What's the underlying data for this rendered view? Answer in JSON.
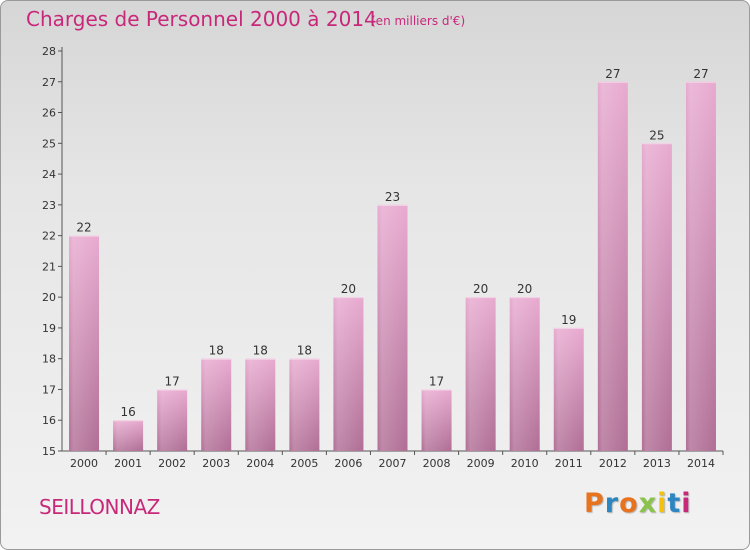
{
  "title": "Charges de Personnel 2000 à 2014",
  "subtitle": "(en milliers d'€)",
  "commune": "SEILLONNAZ",
  "logo_text": "Proxiti",
  "logo_colors": [
    "#e8731e",
    "#2e86c1",
    "#e8731e",
    "#8bc34a",
    "#f4c20d",
    "#2e86c1",
    "#c8287a"
  ],
  "colors": {
    "accent": "#c8287a",
    "bar_top": "#e8aad0",
    "bar_bottom": "#b06e95"
  },
  "chart_data": {
    "type": "bar",
    "categories": [
      "2000",
      "2001",
      "2002",
      "2003",
      "2004",
      "2005",
      "2006",
      "2007",
      "2008",
      "2009",
      "2010",
      "2011",
      "2012",
      "2013",
      "2014"
    ],
    "values": [
      22,
      16,
      17,
      18,
      18,
      18,
      20,
      23,
      17,
      20,
      20,
      19,
      27,
      25,
      27
    ],
    "ylim": [
      15,
      28
    ],
    "yticks": [
      15,
      16,
      17,
      18,
      19,
      20,
      21,
      22,
      23,
      24,
      25,
      26,
      27,
      28
    ],
    "grid": false,
    "data_labels": true
  }
}
